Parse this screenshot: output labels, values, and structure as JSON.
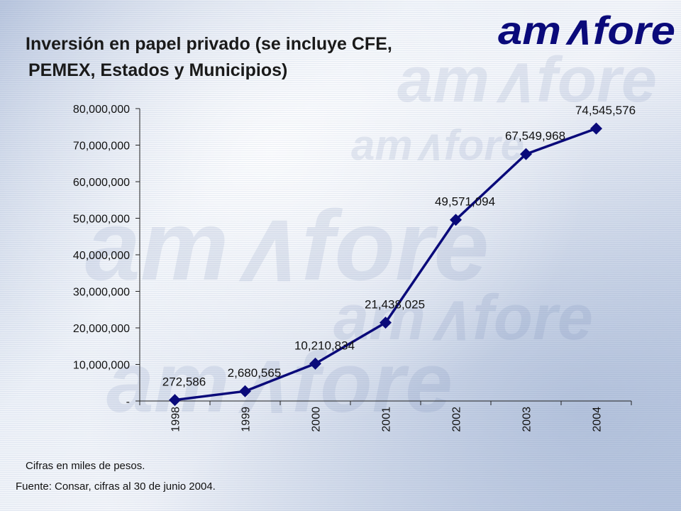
{
  "slide": {
    "title_line1": "Inversión en papel privado (se incluye CFE,",
    "title_line2": "PEMEX, Estados y Municipios)",
    "logo_text": "am∧fore",
    "note_units": "Cifras en miles de pesos.",
    "note_source": "Fuente: Consar, cifras al 30 de junio 2004."
  },
  "colors": {
    "series": "#0a0a7a",
    "logo": "#0a0a7a"
  },
  "chart_data": {
    "type": "line",
    "categories": [
      "1998",
      "1999",
      "2000",
      "2001",
      "2002",
      "2003",
      "2004"
    ],
    "values": [
      272586,
      2680565,
      10210834,
      21438025,
      49571094,
      67549968,
      74545576
    ],
    "data_labels": [
      "272,586",
      "2,680,565",
      "10,210,834",
      "21,438,025",
      "49,571,094",
      "67,549,968",
      "74,545,576"
    ],
    "y_tick_labels": [
      "-",
      "10,000,000",
      "20,000,000",
      "30,000,000",
      "40,000,000",
      "50,000,000",
      "60,000,000",
      "70,000,000",
      "80,000,000"
    ],
    "ylim": [
      0,
      80000000
    ],
    "y_step": 10000000,
    "marker": "diamond",
    "grid": false,
    "legend": "none"
  }
}
